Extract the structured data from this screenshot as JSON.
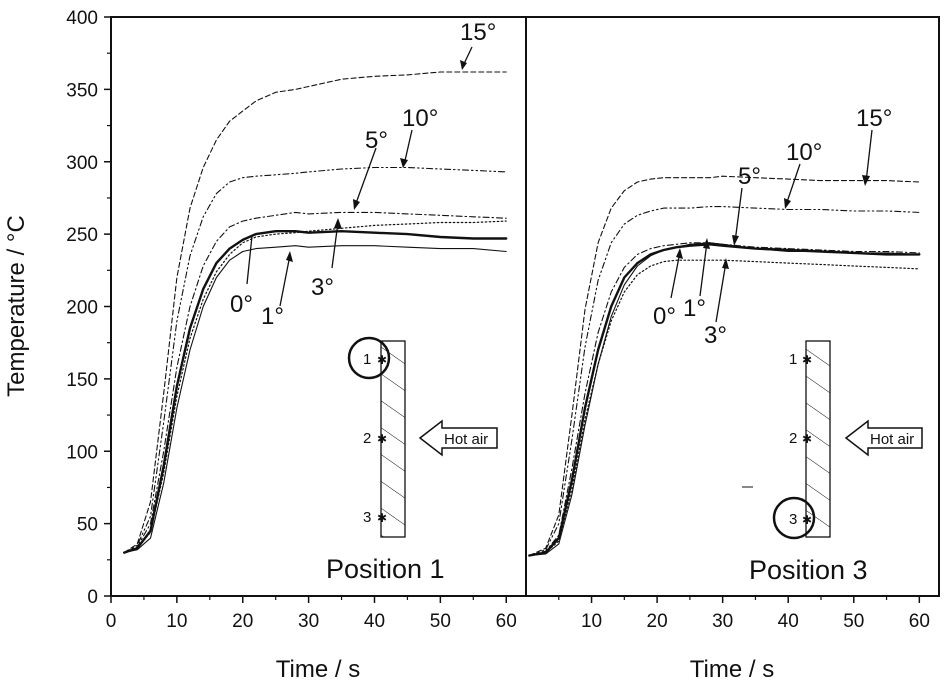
{
  "chart_data": [
    {
      "type": "line",
      "panel": "left",
      "panel_label": "Position 1",
      "xlabel": "Time / s",
      "ylabel": "Temperature / °C",
      "xlim": [
        0,
        63
      ],
      "ylim": [
        0,
        400
      ],
      "xticks": [
        0,
        10,
        20,
        30,
        40,
        50,
        60
      ],
      "yticks": [
        0,
        50,
        100,
        150,
        200,
        250,
        300,
        350,
        400
      ],
      "series": [
        {
          "name": "0°",
          "style": "solid-thick",
          "x": [
            2,
            4,
            6,
            8,
            10,
            12,
            14,
            16,
            18,
            20,
            22,
            25,
            28,
            30,
            35,
            40,
            45,
            50,
            55,
            60
          ],
          "y": [
            30,
            33,
            45,
            90,
            145,
            185,
            212,
            230,
            240,
            246,
            250,
            252,
            252,
            251,
            252,
            251,
            250,
            248,
            247,
            247
          ]
        },
        {
          "name": "1°",
          "style": "solid-thin",
          "x": [
            2,
            4,
            6,
            8,
            10,
            12,
            14,
            16,
            18,
            20,
            22,
            25,
            28,
            30,
            35,
            40,
            45,
            50,
            55,
            60
          ],
          "y": [
            30,
            32,
            40,
            78,
            130,
            170,
            200,
            220,
            232,
            238,
            240,
            241,
            242,
            241,
            242,
            242,
            241,
            240,
            240,
            238
          ]
        },
        {
          "name": "3°",
          "style": "dotted",
          "x": [
            2,
            4,
            6,
            8,
            10,
            12,
            14,
            16,
            18,
            20,
            22,
            25,
            28,
            30,
            35,
            40,
            45,
            50,
            55,
            60
          ],
          "y": [
            30,
            33,
            44,
            85,
            138,
            178,
            205,
            224,
            236,
            244,
            248,
            250,
            251,
            252,
            254,
            256,
            257,
            258,
            258,
            259
          ]
        },
        {
          "name": "5°",
          "style": "dash-dot",
          "x": [
            2,
            4,
            6,
            8,
            10,
            12,
            14,
            16,
            18,
            20,
            22,
            25,
            28,
            30,
            35,
            40,
            45,
            50,
            55,
            60
          ],
          "y": [
            30,
            34,
            50,
            100,
            158,
            200,
            228,
            245,
            255,
            259,
            261,
            263,
            265,
            264,
            265,
            265,
            264,
            263,
            262,
            261
          ]
        },
        {
          "name": "10°",
          "style": "dash-dot-dot",
          "x": [
            2,
            4,
            6,
            8,
            10,
            12,
            14,
            16,
            18,
            20,
            22,
            25,
            28,
            30,
            35,
            40,
            45,
            50,
            55,
            60
          ],
          "y": [
            30,
            35,
            55,
            120,
            190,
            235,
            262,
            278,
            286,
            289,
            290,
            291,
            292,
            293,
            295,
            296,
            296,
            295,
            294,
            293
          ]
        },
        {
          "name": "15°",
          "style": "dashed",
          "x": [
            2,
            4,
            6,
            8,
            10,
            12,
            14,
            16,
            18,
            20,
            22,
            25,
            28,
            30,
            35,
            40,
            45,
            50,
            55,
            60
          ],
          "y": [
            30,
            36,
            65,
            140,
            220,
            268,
            296,
            315,
            328,
            335,
            342,
            348,
            350,
            352,
            357,
            359,
            360,
            362,
            362,
            362
          ]
        }
      ],
      "annotations": [
        "0°",
        "1°",
        "3°",
        "5°",
        "10°",
        "15°"
      ]
    },
    {
      "type": "line",
      "panel": "right",
      "panel_label": "Position 3",
      "xlabel": "Time / s",
      "ylabel": "",
      "xlim": [
        0,
        63
      ],
      "ylim": [
        0,
        400
      ],
      "xticks": [
        10,
        20,
        30,
        40,
        50,
        60
      ],
      "yticks": [],
      "series": [
        {
          "name": "0°",
          "style": "solid-thick",
          "x": [
            0.5,
            3,
            5,
            7,
            9,
            11,
            13,
            15,
            17,
            19,
            21,
            23,
            25,
            28,
            30,
            35,
            40,
            45,
            50,
            55,
            60
          ],
          "y": [
            28,
            30,
            40,
            80,
            130,
            170,
            200,
            220,
            230,
            236,
            239,
            241,
            242,
            243,
            242,
            240,
            239,
            238,
            237,
            236,
            236
          ]
        },
        {
          "name": "1°",
          "style": "solid-thin",
          "x": [
            0.5,
            3,
            5,
            7,
            9,
            11,
            13,
            15,
            17,
            19,
            21,
            23,
            25,
            28,
            30,
            35,
            40,
            45,
            50,
            55,
            60
          ],
          "y": [
            28,
            29,
            36,
            70,
            118,
            160,
            193,
            215,
            228,
            235,
            239,
            241,
            243,
            244,
            243,
            240,
            238,
            238,
            237,
            237,
            236
          ]
        },
        {
          "name": "3°",
          "style": "dotted",
          "x": [
            0.5,
            3,
            5,
            7,
            9,
            11,
            13,
            15,
            17,
            19,
            21,
            23,
            25,
            28,
            30,
            35,
            40,
            45,
            50,
            55,
            60
          ],
          "y": [
            28,
            30,
            38,
            74,
            122,
            160,
            190,
            210,
            222,
            228,
            231,
            232,
            232,
            232,
            232,
            231,
            230,
            229,
            228,
            227,
            226
          ]
        },
        {
          "name": "5°",
          "style": "dash-dot",
          "x": [
            0.5,
            3,
            5,
            7,
            9,
            11,
            13,
            15,
            17,
            19,
            21,
            23,
            25,
            28,
            30,
            35,
            40,
            45,
            50,
            55,
            60
          ],
          "y": [
            28,
            31,
            42,
            88,
            140,
            182,
            210,
            227,
            236,
            240,
            242,
            243,
            244,
            244,
            243,
            241,
            240,
            239,
            238,
            238,
            237
          ]
        },
        {
          "name": "10°",
          "style": "dash-dot-dot",
          "x": [
            0.5,
            3,
            5,
            7,
            9,
            11,
            13,
            15,
            17,
            19,
            21,
            23,
            25,
            28,
            30,
            35,
            40,
            45,
            50,
            55,
            60
          ],
          "y": [
            28,
            32,
            50,
            108,
            172,
            218,
            244,
            257,
            263,
            266,
            268,
            268,
            268,
            269,
            269,
            268,
            267,
            267,
            266,
            266,
            265
          ]
        },
        {
          "name": "15°",
          "style": "dashed",
          "x": [
            0.5,
            3,
            5,
            7,
            9,
            11,
            13,
            15,
            17,
            19,
            21,
            23,
            25,
            28,
            30,
            35,
            40,
            45,
            50,
            55,
            60
          ],
          "y": [
            28,
            33,
            56,
            125,
            198,
            244,
            268,
            280,
            286,
            288,
            289,
            289,
            289,
            289,
            290,
            289,
            288,
            287,
            287,
            287,
            286
          ]
        }
      ],
      "annotations": [
        "0°",
        "1°",
        "3°",
        "5°",
        "10°",
        "15°"
      ]
    }
  ],
  "inset": {
    "points": [
      "1",
      "2",
      "3"
    ],
    "flow_label": "Hot air"
  }
}
